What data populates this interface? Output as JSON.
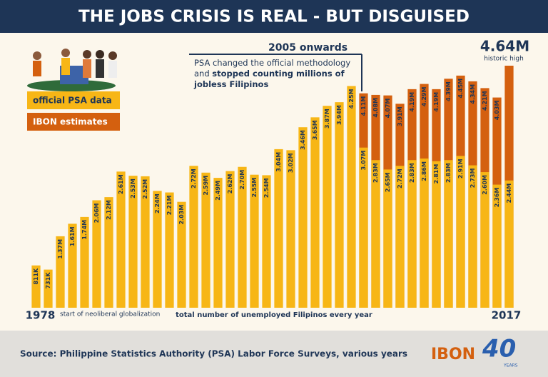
{
  "chart_data": {
    "type": "bar",
    "title": "THE JOBS CRISIS IS REAL - BUT DISGUISED",
    "categories": [
      "1978",
      null,
      null,
      null,
      null,
      null,
      null,
      null,
      null,
      null,
      null,
      null,
      null,
      null,
      null,
      null,
      null,
      null,
      null,
      null,
      null,
      null,
      null,
      null,
      null,
      null,
      null,
      null,
      null,
      null,
      null,
      null,
      null,
      null,
      null,
      null,
      null,
      null,
      null,
      "2017"
    ],
    "series": [
      {
        "name": "official PSA data",
        "color": "#f7b616",
        "values": [
          0.811,
          0.731,
          1.37,
          1.61,
          1.74,
          2.06,
          2.12,
          2.61,
          2.53,
          2.52,
          2.24,
          2.21,
          2.03,
          2.72,
          2.59,
          2.49,
          2.62,
          2.7,
          2.55,
          2.54,
          3.04,
          3.02,
          3.46,
          3.65,
          3.87,
          3.94,
          4.25,
          3.07,
          2.83,
          2.65,
          2.72,
          2.83,
          2.86,
          2.81,
          2.83,
          2.91,
          2.73,
          2.6,
          2.36,
          2.44
        ],
        "value_labels": [
          "811K",
          "731K",
          "1.37M",
          "1.61M",
          "1.74M",
          "2.06M",
          "2.12M",
          "2.61M",
          "2.53M",
          "2.52M",
          "2.24M",
          "2.21M",
          "2.03M",
          "2.72M",
          "2.59M",
          "2.49M",
          "2.62M",
          "2.70M",
          "2.55M",
          "2.54M",
          "3.04M",
          "3.02M",
          "3.46M",
          "3.65M",
          "3.87M",
          "3.94M",
          "4.25M",
          "3.07M",
          "2.83M",
          "2.65M",
          "2.72M",
          "2.83M",
          "2.86M",
          "2.81M",
          "2.83M",
          "2.91M",
          "2.73M",
          "2.60M",
          "2.36M",
          "2.44M"
        ]
      },
      {
        "name": "IBON estimates",
        "color": "#d4600f",
        "values": [
          null,
          null,
          null,
          null,
          null,
          null,
          null,
          null,
          null,
          null,
          null,
          null,
          null,
          null,
          null,
          null,
          null,
          null,
          null,
          null,
          null,
          null,
          null,
          null,
          null,
          null,
          null,
          4.11,
          4.08,
          4.07,
          3.91,
          4.19,
          4.29,
          4.19,
          4.39,
          4.45,
          4.34,
          4.21,
          4.03,
          4.64
        ],
        "value_labels": [
          null,
          null,
          null,
          null,
          null,
          null,
          null,
          null,
          null,
          null,
          null,
          null,
          null,
          null,
          null,
          null,
          null,
          null,
          null,
          null,
          null,
          null,
          null,
          null,
          null,
          null,
          null,
          "4.11M",
          "4.08M",
          "4.07M",
          "3.91M",
          "4.19M",
          "4.29M",
          "4.19M",
          "4.39M",
          "4.45M",
          "4.34M",
          "4.21M",
          "4.03M",
          "4.64M"
        ]
      }
    ],
    "annotations": {
      "period": "2005 onwards",
      "note_plain": "PSA changed the official methodology and",
      "note_bold": "stopped counting millions of jobless Filipinos",
      "peak_note": "historic high",
      "start_note": "start of neoliberal globalization",
      "x_caption": "total number of unemployed Filipinos every year"
    },
    "source": "Source: Philippine Statistics Authority (PSA) Labor Force Surveys, various years",
    "logo": {
      "name": "IBON",
      "number": "40",
      "years": "YEARS"
    }
  }
}
